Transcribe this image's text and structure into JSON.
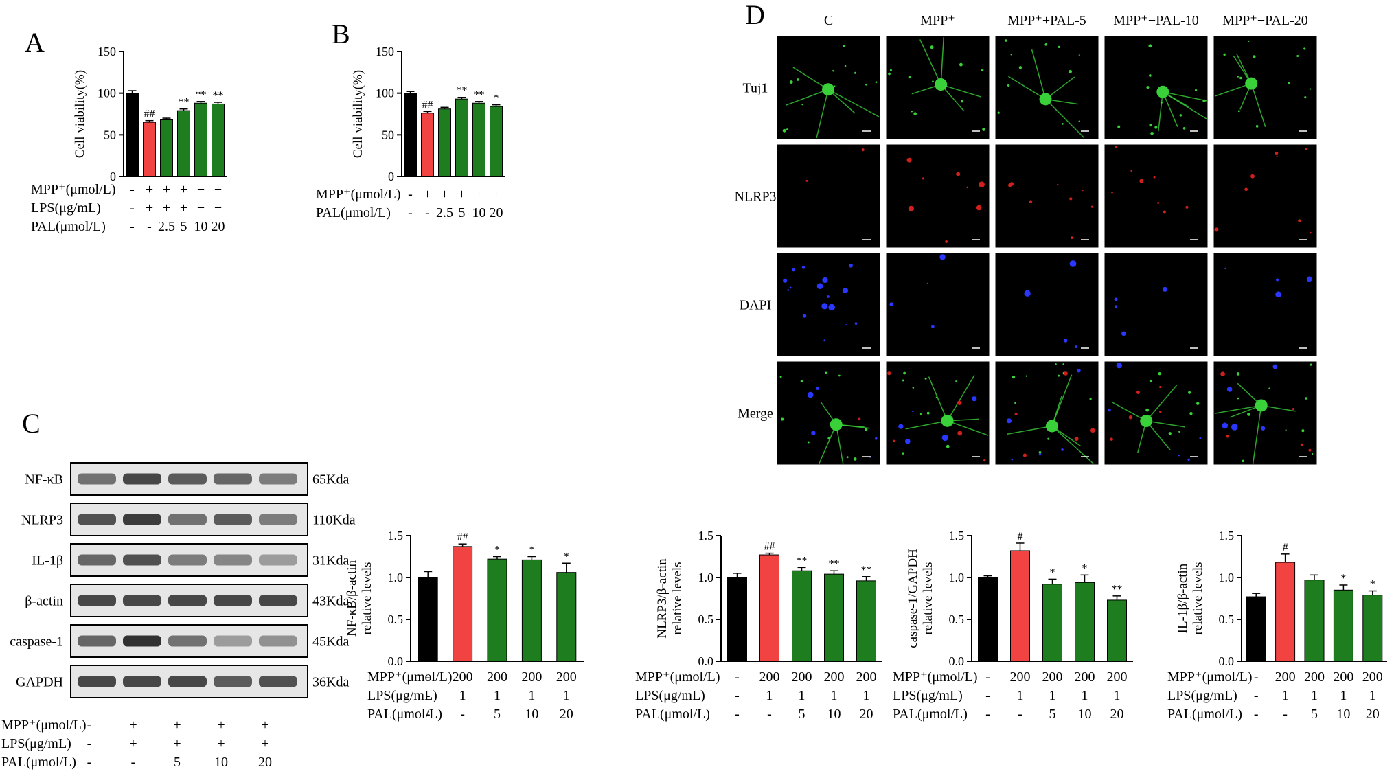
{
  "panels": {
    "A": "A",
    "B": "B",
    "C": "C",
    "D": "D"
  },
  "colors": {
    "control": "#000000",
    "model": "#f24343",
    "treatment": "#1e7d1e",
    "tuj1": "#3ad03a",
    "nlrp3": "#d0201c",
    "dapi": "#2a38ff"
  },
  "chart_data": [
    {
      "id": "A",
      "type": "bar",
      "ylabel": "Cell viability(%)",
      "ylim": [
        0,
        150
      ],
      "yticks": [
        "0",
        "50",
        "100",
        "150"
      ],
      "values": [
        100,
        65,
        68,
        79,
        88,
        87
      ],
      "errors": [
        3,
        2,
        2,
        2,
        2,
        2
      ],
      "bar_colors": [
        "control",
        "model",
        "treatment",
        "treatment",
        "treatment",
        "treatment"
      ],
      "sig": [
        "",
        "##",
        "",
        "**",
        "**",
        "**"
      ],
      "rows": [
        {
          "label": "MPP⁺(μmol/L)",
          "cells": [
            "-",
            "+",
            "+",
            "+",
            "+",
            "+"
          ]
        },
        {
          "label": "LPS(μg/mL)",
          "cells": [
            "-",
            "+",
            "+",
            "+",
            "+",
            "+"
          ]
        },
        {
          "label": "PAL(μmol/L)",
          "cells": [
            "-",
            "-",
            "2.5",
            "5",
            "10",
            "20"
          ]
        }
      ]
    },
    {
      "id": "B",
      "type": "bar",
      "ylabel": "Cell viability(%)",
      "ylim": [
        0,
        150
      ],
      "yticks": [
        "0",
        "50",
        "100",
        "150"
      ],
      "values": [
        100,
        76,
        81,
        93,
        88,
        84
      ],
      "errors": [
        2,
        2,
        2,
        2,
        2,
        2
      ],
      "bar_colors": [
        "control",
        "model",
        "treatment",
        "treatment",
        "treatment",
        "treatment"
      ],
      "sig": [
        "",
        "##",
        "",
        "**",
        "**",
        "*"
      ],
      "rows": [
        {
          "label": "MPP⁺(μmol/L)",
          "cells": [
            "-",
            "+",
            "+",
            "+",
            "+",
            "+"
          ]
        },
        {
          "label": "PAL(μmol/L)",
          "cells": [
            "-",
            "-",
            "2.5",
            "5",
            "10",
            "20"
          ]
        }
      ]
    },
    {
      "id": "C1",
      "type": "bar",
      "ylabel": [
        "NF-κB/β-actin",
        "relative levels"
      ],
      "ylim": [
        0,
        1.5
      ],
      "yticks": [
        "0.0",
        "0.5",
        "1.0",
        "1.5"
      ],
      "values": [
        1.0,
        1.37,
        1.22,
        1.21,
        1.06
      ],
      "errors": [
        0.07,
        0.03,
        0.03,
        0.04,
        0.11
      ],
      "bar_colors": [
        "control",
        "model",
        "treatment",
        "treatment",
        "treatment"
      ],
      "sig": [
        "",
        "##",
        "*",
        "*",
        "*"
      ],
      "rows": [
        {
          "label": "MPP⁺(μmol/L)",
          "cells": [
            "-",
            "200",
            "200",
            "200",
            "200"
          ]
        },
        {
          "label": "LPS(μg/mL)",
          "cells": [
            "-",
            "1",
            "1",
            "1",
            "1"
          ]
        },
        {
          "label": "PAL(μmol/L)",
          "cells": [
            "-",
            "-",
            "5",
            "10",
            "20"
          ]
        }
      ]
    },
    {
      "id": "C2",
      "type": "bar",
      "ylabel": [
        "NLRP3/β-actin",
        "relative levels"
      ],
      "ylim": [
        0,
        1.5
      ],
      "yticks": [
        "0.0",
        "0.5",
        "1.0",
        "1.5"
      ],
      "values": [
        1.0,
        1.27,
        1.08,
        1.04,
        0.96
      ],
      "errors": [
        0.05,
        0.02,
        0.04,
        0.04,
        0.05
      ],
      "bar_colors": [
        "control",
        "model",
        "treatment",
        "treatment",
        "treatment"
      ],
      "sig": [
        "",
        "##",
        "**",
        "**",
        "**"
      ],
      "rows": [
        {
          "label": "MPP⁺(μmol/L)",
          "cells": [
            "-",
            "200",
            "200",
            "200",
            "200"
          ]
        },
        {
          "label": "LPS(μg/mL)",
          "cells": [
            "-",
            "1",
            "1",
            "1",
            "1"
          ]
        },
        {
          "label": "PAL(μmol/L)",
          "cells": [
            "-",
            "-",
            "5",
            "10",
            "20"
          ]
        }
      ]
    },
    {
      "id": "C3",
      "type": "bar",
      "ylabel": [
        "caspase-1/GAPDH",
        "relative levels"
      ],
      "ylim": [
        0,
        1.5
      ],
      "yticks": [
        "0.0",
        "0.5",
        "1.0",
        "1.5"
      ],
      "values": [
        1.0,
        1.32,
        0.92,
        0.94,
        0.73
      ],
      "errors": [
        0.02,
        0.09,
        0.06,
        0.09,
        0.05
      ],
      "bar_colors": [
        "control",
        "model",
        "treatment",
        "treatment",
        "treatment"
      ],
      "sig": [
        "",
        "#",
        "*",
        "*",
        "**"
      ],
      "rows": [
        {
          "label": "MPP⁺(μmol/L)",
          "cells": [
            "-",
            "200",
            "200",
            "200",
            "200"
          ]
        },
        {
          "label": "LPS(μg/mL)",
          "cells": [
            "-",
            "1",
            "1",
            "1",
            "1"
          ]
        },
        {
          "label": "PAL(μmol/L)",
          "cells": [
            "-",
            "-",
            "5",
            "10",
            "20"
          ]
        }
      ]
    },
    {
      "id": "C4",
      "type": "bar",
      "ylabel": [
        "IL-1β/β-actin",
        "relative levels"
      ],
      "ylim": [
        0,
        1.5
      ],
      "yticks": [
        "0.0",
        "0.5",
        "1.0",
        "1.5"
      ],
      "values": [
        0.77,
        1.18,
        0.97,
        0.85,
        0.79
      ],
      "errors": [
        0.04,
        0.1,
        0.06,
        0.06,
        0.05
      ],
      "bar_colors": [
        "control",
        "model",
        "treatment",
        "treatment",
        "treatment"
      ],
      "sig": [
        "",
        "#",
        "",
        "*",
        "*"
      ],
      "rows": [
        {
          "label": "MPP⁺(μmol/L)",
          "cells": [
            "-",
            "200",
            "200",
            "200",
            "200"
          ]
        },
        {
          "label": "LPS(μg/mL)",
          "cells": [
            "-",
            "1",
            "1",
            "1",
            "1"
          ]
        },
        {
          "label": "PAL(μmol/L)",
          "cells": [
            "-",
            "-",
            "5",
            "10",
            "20"
          ]
        }
      ]
    }
  ],
  "western_blot": {
    "proteins": [
      {
        "name": "NF-κB",
        "size": "65Kda",
        "intensity": [
          0.55,
          0.75,
          0.65,
          0.6,
          0.5
        ]
      },
      {
        "name": "NLRP3",
        "size": "110Kda",
        "intensity": [
          0.7,
          0.8,
          0.55,
          0.65,
          0.5
        ]
      },
      {
        "name": "IL-1β",
        "size": "31Kda",
        "intensity": [
          0.6,
          0.7,
          0.5,
          0.45,
          0.35
        ]
      },
      {
        "name": "β-actin",
        "size": "43Kda",
        "intensity": [
          0.75,
          0.75,
          0.75,
          0.75,
          0.75
        ]
      },
      {
        "name": "caspase-1",
        "size": "45Kda",
        "intensity": [
          0.6,
          0.85,
          0.55,
          0.35,
          0.4
        ]
      },
      {
        "name": "GAPDH",
        "size": "36Kda",
        "intensity": [
          0.75,
          0.75,
          0.75,
          0.65,
          0.7
        ]
      }
    ],
    "rows": [
      {
        "label": "MPP⁺(μmol/L)",
        "cells": [
          "-",
          "+",
          "+",
          "+",
          "+"
        ]
      },
      {
        "label": "LPS(μg/mL)",
        "cells": [
          "-",
          "+",
          "+",
          "+",
          "+"
        ]
      },
      {
        "label": "PAL(μmol/L)",
        "cells": [
          "-",
          "-",
          "5",
          "10",
          "20"
        ]
      }
    ]
  },
  "microscopy": {
    "columns": [
      "C",
      "MPP⁺",
      "MPP⁺+PAL-5",
      "MPP⁺+PAL-10",
      "MPP⁺+PAL-20"
    ],
    "rows": [
      "Tuj1",
      "NLRP3",
      "DAPI",
      "Merge"
    ]
  }
}
